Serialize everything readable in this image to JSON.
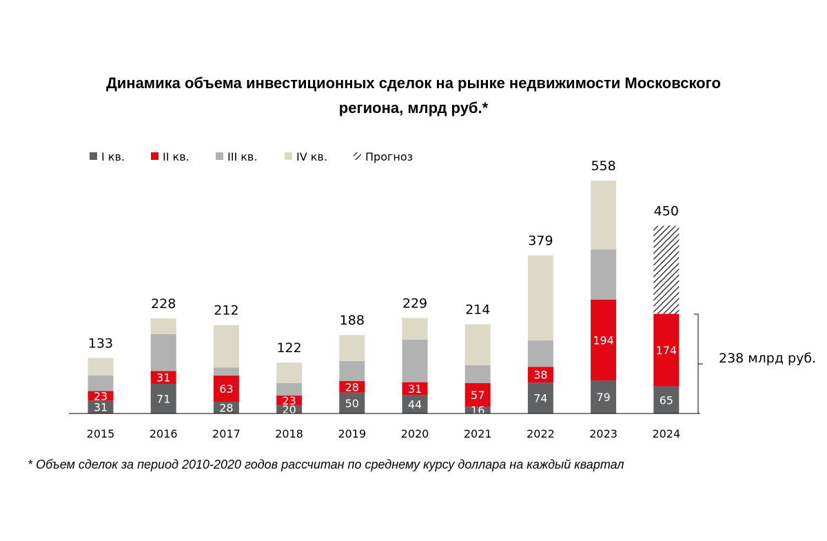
{
  "title": "Динамика объема инвестиционных сделок на рынке недвижимости Московского\nрегиона, млрд руб.*",
  "footnote": "* Объем сделок за период 2010-2020 годов рассчитан по среднему курсу доллара на каждый квартал",
  "colors": {
    "q1": "#5f6163",
    "q2": "#e30613",
    "q3": "#b2b2b2",
    "q4": "#ddd9c7",
    "forecast_stroke": "#3a3a3a"
  },
  "legend": [
    {
      "key": "q1",
      "label": "I кв."
    },
    {
      "key": "q2",
      "label": "II кв."
    },
    {
      "key": "q3",
      "label": "III кв."
    },
    {
      "key": "q4",
      "label": "IV кв."
    },
    {
      "key": "forecast",
      "label": "Прогноз"
    }
  ],
  "annotation": {
    "label": "238 млрд руб.",
    "from_value": 0,
    "to_value": 238,
    "category": "2024"
  },
  "chart_data": {
    "type": "bar",
    "stacked": true,
    "categories": [
      "2015",
      "2016",
      "2017",
      "2018",
      "2019",
      "2020",
      "2021",
      "2022",
      "2023",
      "2024"
    ],
    "series": [
      {
        "name": "I кв.",
        "key": "q1",
        "values": [
          31,
          71,
          28,
          20,
          50,
          44,
          16,
          74,
          79,
          65
        ],
        "labeled": true
      },
      {
        "name": "II кв.",
        "key": "q2",
        "values": [
          23,
          31,
          63,
          23,
          28,
          31,
          57,
          38,
          194,
          174
        ],
        "labeled": true
      },
      {
        "name": "III кв.",
        "key": "q3",
        "values": [
          37,
          88,
          19,
          30,
          48,
          102,
          43,
          63,
          120,
          null
        ],
        "labeled": false
      },
      {
        "name": "IV кв.",
        "key": "q4",
        "values": [
          42,
          38,
          102,
          49,
          62,
          52,
          98,
          204,
          165,
          null
        ],
        "labeled": false
      },
      {
        "name": "Прогноз",
        "key": "forecast",
        "values": [
          null,
          null,
          null,
          null,
          null,
          null,
          null,
          null,
          null,
          211
        ],
        "labeled": false
      }
    ],
    "totals": [
      133,
      228,
      212,
      122,
      188,
      229,
      214,
      379,
      558,
      450
    ],
    "ylim": [
      0,
      560
    ],
    "xlabel": "",
    "ylabel": "",
    "grid": false,
    "legend_position": "top-left"
  }
}
